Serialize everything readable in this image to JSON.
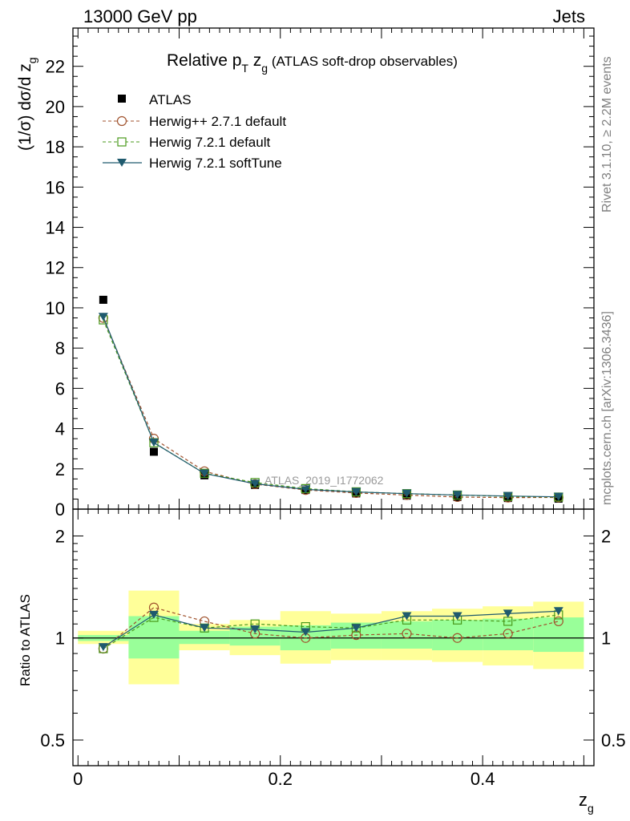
{
  "header": {
    "left": "13000 GeV pp",
    "right": "Jets"
  },
  "side_labels": {
    "top": "Rivet 3.1.10, ≥ 2.2M events",
    "bottom": "mcplots.cern.ch [arXiv:1306.3436]"
  },
  "colors": {
    "atlas": "#000000",
    "herwigpp": "#a0522d",
    "herwig721": "#4a9a1c",
    "softtune": "#1f5a6e",
    "band_yellow": "#ffff99",
    "band_green": "#99ff99"
  },
  "chart_data": [
    {
      "type": "scatter",
      "title_parts": {
        "t1": "Relative p",
        "t1_sub": "T",
        "t2": " z",
        "t2_sub": "g",
        "t3": " (ATLAS soft-drop observables)"
      },
      "ylabel": "(1/σ) dσ/d z",
      "ylabel_sub": "g",
      "ylim": [
        0,
        23.9
      ],
      "yticks": [
        0,
        2,
        4,
        6,
        8,
        10,
        12,
        14,
        16,
        18,
        20,
        22
      ],
      "analysis_tag": "ATLAS_2019_I1772062",
      "x": [
        0.025,
        0.075,
        0.125,
        0.175,
        0.225,
        0.275,
        0.325,
        0.375,
        0.425,
        0.475
      ],
      "series": [
        {
          "name": "ATLAS",
          "key": "atlas",
          "marker": "square-filled",
          "values": [
            10.4,
            2.85,
            1.68,
            1.2,
            0.95,
            0.78,
            0.67,
            0.6,
            0.55,
            0.52
          ]
        },
        {
          "name": "Herwig++ 2.7.1 default",
          "key": "herwigpp",
          "marker": "circle-open",
          "line": "dashed",
          "values": [
            9.5,
            3.5,
            1.88,
            1.24,
            0.95,
            0.8,
            0.7,
            0.6,
            0.57,
            0.58
          ]
        },
        {
          "name": "Herwig 7.2.1 default",
          "key": "herwig721",
          "marker": "square-open",
          "line": "dashed",
          "values": [
            9.4,
            3.3,
            1.78,
            1.32,
            1.02,
            0.86,
            0.77,
            0.7,
            0.63,
            0.6
          ]
        },
        {
          "name": "Herwig 7.2.1 softTune",
          "key": "softtune",
          "marker": "triangle-down",
          "line": "solid",
          "values": [
            9.55,
            3.3,
            1.77,
            1.26,
            0.98,
            0.85,
            0.77,
            0.7,
            0.65,
            0.61
          ]
        }
      ]
    },
    {
      "type": "scatter",
      "ylabel": "Ratio to ATLAS",
      "xlabel": "z",
      "xlabel_sub": "g",
      "yscale": "log",
      "ylim": [
        0.42,
        2.4
      ],
      "yticks": [
        0.5,
        1,
        2
      ],
      "ytick_labels": [
        "0.5",
        "1",
        "2"
      ],
      "xlim": [
        -0.005,
        0.51
      ],
      "xticks": [
        0,
        0.2,
        0.4
      ],
      "xtick_labels": [
        "0",
        "0.2",
        "0.4"
      ],
      "bins": [
        [
          0,
          0.05
        ],
        [
          0.05,
          0.1
        ],
        [
          0.1,
          0.15
        ],
        [
          0.15,
          0.2
        ],
        [
          0.2,
          0.25
        ],
        [
          0.25,
          0.3
        ],
        [
          0.3,
          0.35
        ],
        [
          0.35,
          0.4
        ],
        [
          0.4,
          0.45
        ],
        [
          0.45,
          0.5
        ]
      ],
      "band_total": [
        [
          0.96,
          1.05
        ],
        [
          0.73,
          1.38
        ],
        [
          0.92,
          1.1
        ],
        [
          0.89,
          1.13
        ],
        [
          0.84,
          1.2
        ],
        [
          0.86,
          1.18
        ],
        [
          0.86,
          1.2
        ],
        [
          0.85,
          1.22
        ],
        [
          0.83,
          1.24
        ],
        [
          0.81,
          1.28
        ]
      ],
      "band_stat": [
        [
          0.98,
          1.02
        ],
        [
          0.87,
          1.16
        ],
        [
          0.96,
          1.05
        ],
        [
          0.95,
          1.08
        ],
        [
          0.92,
          1.09
        ],
        [
          0.93,
          1.11
        ],
        [
          0.93,
          1.12
        ],
        [
          0.92,
          1.13
        ],
        [
          0.92,
          1.14
        ],
        [
          0.91,
          1.15
        ]
      ],
      "x": [
        0.025,
        0.075,
        0.125,
        0.175,
        0.225,
        0.275,
        0.325,
        0.375,
        0.425,
        0.475
      ],
      "series": [
        {
          "name": "Herwig++ 2.7.1 default",
          "key": "herwigpp",
          "values": [
            0.93,
            1.23,
            1.12,
            1.03,
            1.0,
            1.02,
            1.03,
            1.0,
            1.03,
            1.12
          ]
        },
        {
          "name": "Herwig 7.2.1 default",
          "key": "herwig721",
          "values": [
            0.93,
            1.15,
            1.07,
            1.1,
            1.08,
            1.07,
            1.13,
            1.13,
            1.12,
            1.17
          ]
        },
        {
          "name": "Herwig 7.2.1 softTune",
          "key": "softtune",
          "values": [
            0.94,
            1.17,
            1.07,
            1.06,
            1.04,
            1.07,
            1.16,
            1.16,
            1.18,
            1.2
          ]
        }
      ]
    }
  ]
}
